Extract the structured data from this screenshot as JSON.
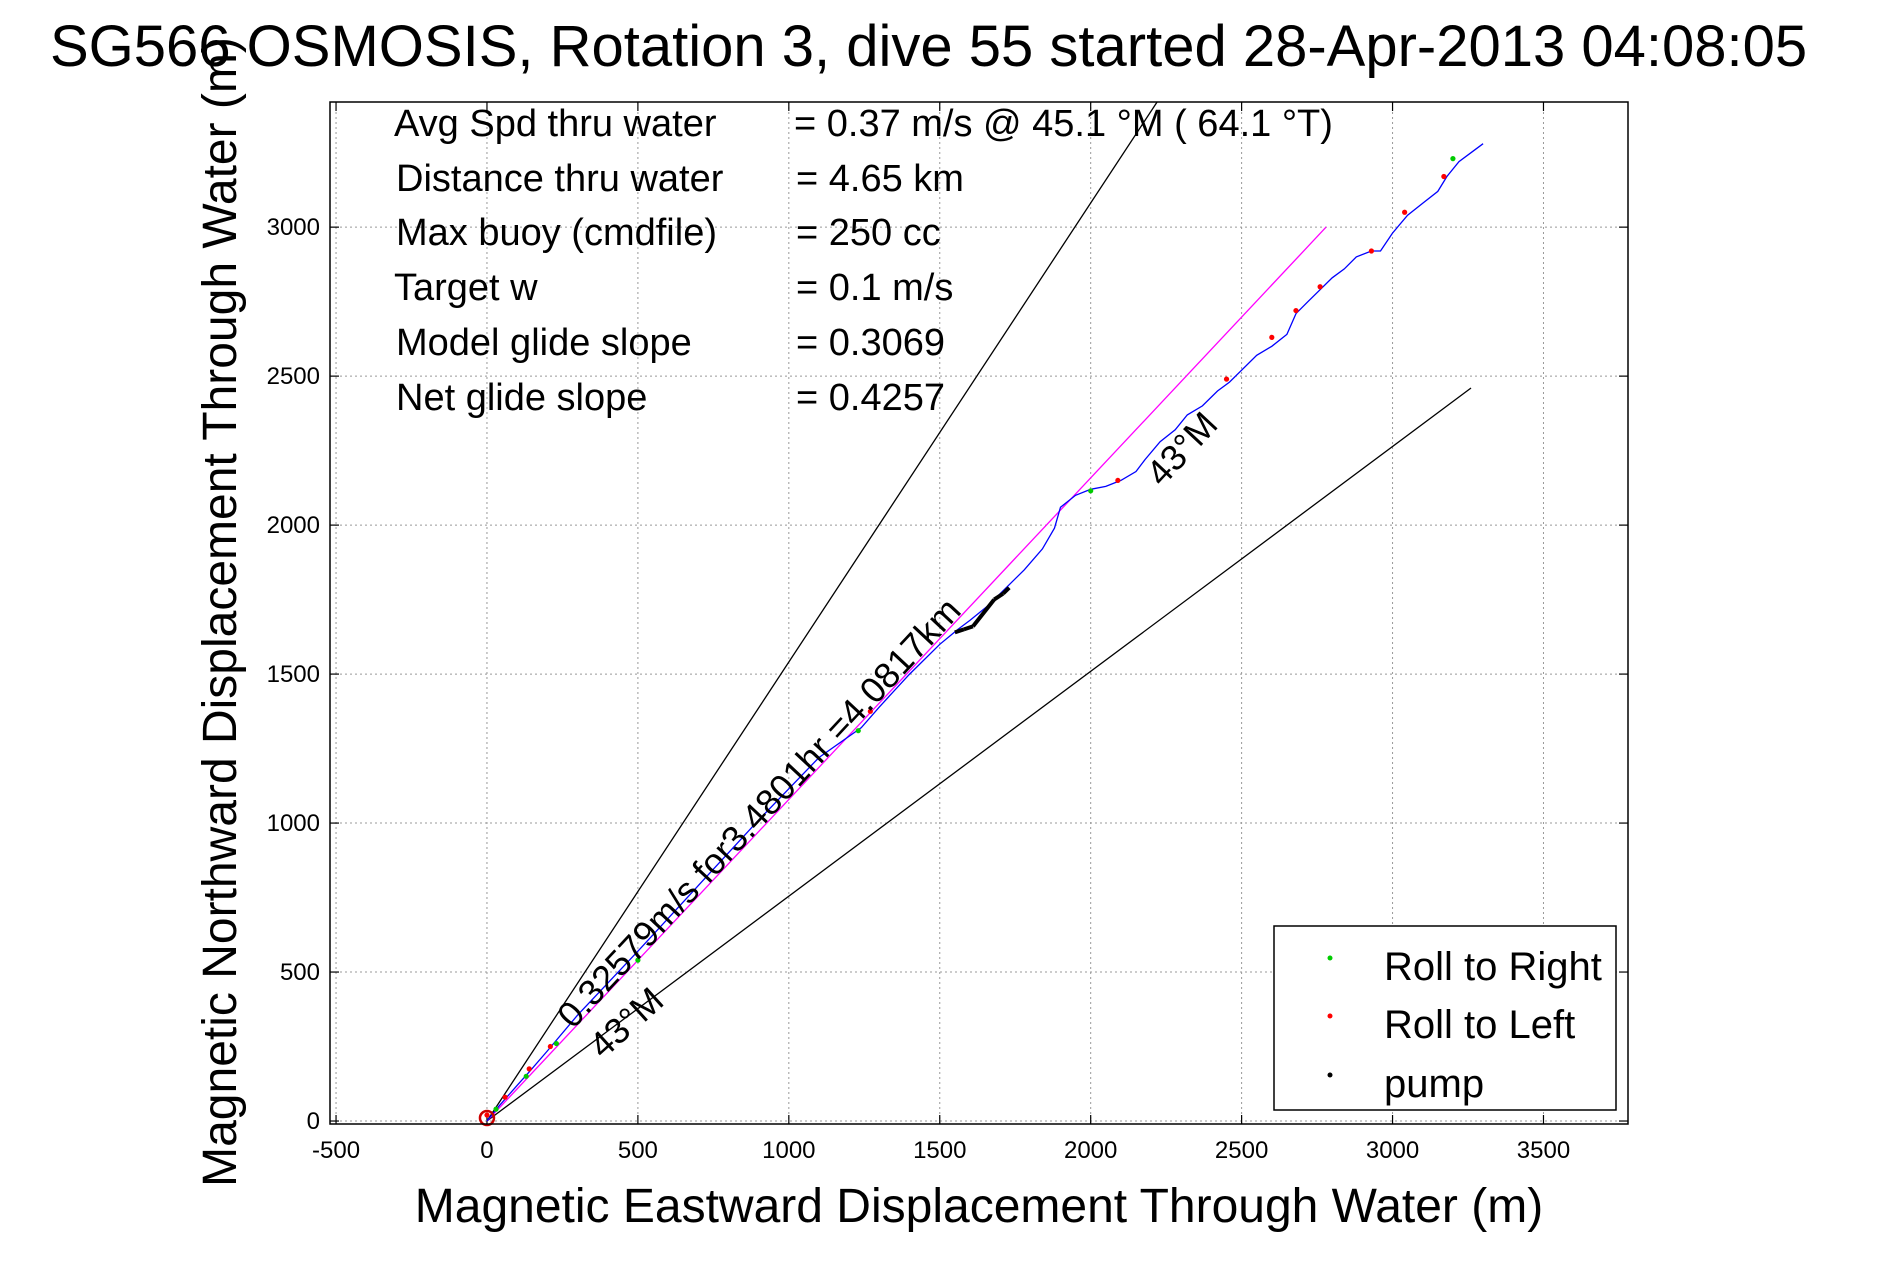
{
  "chart_data": {
    "type": "line",
    "title": "SG566 OSMOSIS, Rotation 3, dive 55 started 28-Apr-2013 04:08:05",
    "xlabel": "Magnetic Eastward Displacement Through Water (m)",
    "ylabel": "Magnetic Northward Displacement Through Water (m)",
    "xlim": [
      -520,
      3780
    ],
    "ylim": [
      -10,
      3420
    ],
    "xticks": [
      -500,
      0,
      500,
      1000,
      1500,
      2000,
      2500,
      3000,
      3500
    ],
    "yticks": [
      0,
      500,
      1000,
      1500,
      2000,
      2500,
      3000
    ],
    "grid": true,
    "info": [
      {
        "label": "Avg Spd thru water",
        "value": "=  0.37 m/s @  45.1 °M ( 64.1 °T)"
      },
      {
        "label": "Distance thru water",
        "value": "=  4.65 km"
      },
      {
        "label": "Max buoy (cmdfile)",
        "value": "= 250 cc"
      },
      {
        "label": "Target w",
        "value": "= 0.1 m/s"
      },
      {
        "label": "Model glide slope",
        "value": "= 0.3069"
      },
      {
        "label": "Net glide slope",
        "value": "= 0.4257"
      }
    ],
    "annotations": {
      "speed": "0.32579m/s for3.4801hr =4.0817km",
      "bearing_lower": "43°M",
      "bearing_upper": "43°M"
    },
    "reference_lines": [
      {
        "name": "",
        "color": "#000000",
        "x": [
          0,
          2220
        ],
        "y": [
          0,
          3420
        ]
      },
      {
        "name": "",
        "color": "#000000",
        "x": [
          0,
          3260
        ],
        "y": [
          0,
          2460
        ]
      }
    ],
    "series": [
      {
        "name": "",
        "color": "#ff00ff",
        "x": [
          0,
          2780
        ],
        "y": [
          0,
          3000
        ]
      },
      {
        "name": "",
        "color": "#0000ff",
        "x": [
          0,
          40,
          100,
          140,
          200,
          300,
          500,
          700,
          900,
          1100,
          1240,
          1300,
          1400,
          1500,
          1560,
          1600,
          1660,
          1720,
          1780,
          1840,
          1880,
          1900,
          1950,
          2000,
          2050,
          2100,
          2150,
          2180,
          2230,
          2280,
          2320,
          2370,
          2420,
          2460,
          2500,
          2550,
          2600,
          2650,
          2680,
          2720,
          2760,
          2800,
          2840,
          2880,
          2930,
          2960,
          3000,
          3050,
          3100,
          3150,
          3180,
          3220,
          3260,
          3300
        ],
        "y": [
          0,
          50,
          120,
          165,
          235,
          355,
          570,
          790,
          1010,
          1220,
          1320,
          1390,
          1500,
          1600,
          1650,
          1680,
          1730,
          1790,
          1850,
          1920,
          1990,
          2060,
          2100,
          2120,
          2130,
          2150,
          2180,
          2220,
          2280,
          2320,
          2370,
          2400,
          2450,
          2480,
          2520,
          2570,
          2600,
          2640,
          2710,
          2750,
          2790,
          2830,
          2860,
          2900,
          2920,
          2920,
          2980,
          3040,
          3080,
          3120,
          3170,
          3220,
          3250,
          3280
        ]
      },
      {
        "name": "Roll to Right",
        "color": "#00cc00",
        "marker": "dot",
        "x": [
          30,
          130,
          230,
          500,
          1230,
          2000,
          3200
        ],
        "y": [
          40,
          150,
          260,
          540,
          1310,
          2115,
          3230
        ]
      },
      {
        "name": "Roll to Left",
        "color": "#ff0000",
        "marker": "dot",
        "x": [
          0,
          60,
          140,
          210,
          1270,
          2090,
          2450,
          2600,
          2680,
          2760,
          2930,
          3040,
          3170
        ],
        "y": [
          20,
          80,
          175,
          250,
          1375,
          2150,
          2490,
          2630,
          2720,
          2800,
          2920,
          3050,
          3170
        ]
      },
      {
        "name": "pump",
        "color": "#000000",
        "marker": "dash",
        "x": [
          1550,
          1580,
          1610,
          1680,
          1710,
          1730
        ],
        "y": [
          1640,
          1650,
          1660,
          1750,
          1770,
          1790
        ]
      }
    ],
    "legend": {
      "placement": "bottom-right",
      "entries": [
        {
          "label": "Roll to Right",
          "color": "#00cc00"
        },
        {
          "label": "Roll to Left",
          "color": "#ff0000"
        },
        {
          "label": "pump",
          "color": "#000000"
        }
      ]
    }
  }
}
